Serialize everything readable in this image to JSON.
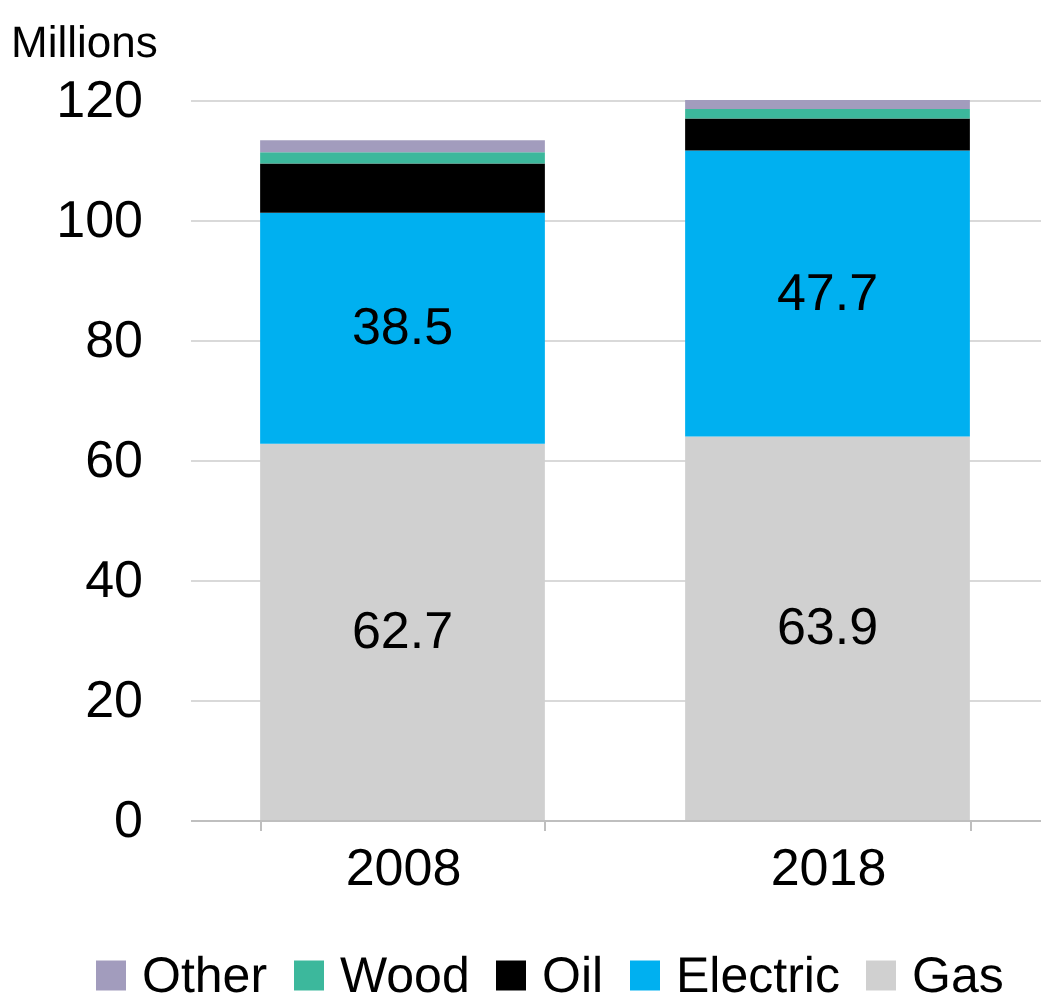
{
  "chart_data": {
    "type": "bar",
    "stacked": true,
    "ylabel": "Millions",
    "categories": [
      "2008",
      "2018"
    ],
    "series": [
      {
        "name": "Gas",
        "color": "#d0d0d0",
        "values": [
          62.7,
          63.9
        ],
        "value_labels": [
          "62.7",
          "63.9"
        ]
      },
      {
        "name": "Electric",
        "color": "#00b0f0",
        "values": [
          38.5,
          47.7
        ],
        "value_labels": [
          "38.5",
          "47.7"
        ]
      },
      {
        "name": "Oil",
        "color": "#000000",
        "values": [
          8.2,
          5.3
        ]
      },
      {
        "name": "Wood",
        "color": "#3cb89c",
        "values": [
          1.9,
          1.6
        ]
      },
      {
        "name": "Other",
        "color": "#a29cbd",
        "values": [
          2.0,
          1.5
        ]
      }
    ],
    "ylim": [
      0,
      120
    ],
    "yticks": [
      0,
      20,
      40,
      60,
      80,
      100,
      120
    ],
    "grid": "y",
    "legend": "bottom"
  }
}
